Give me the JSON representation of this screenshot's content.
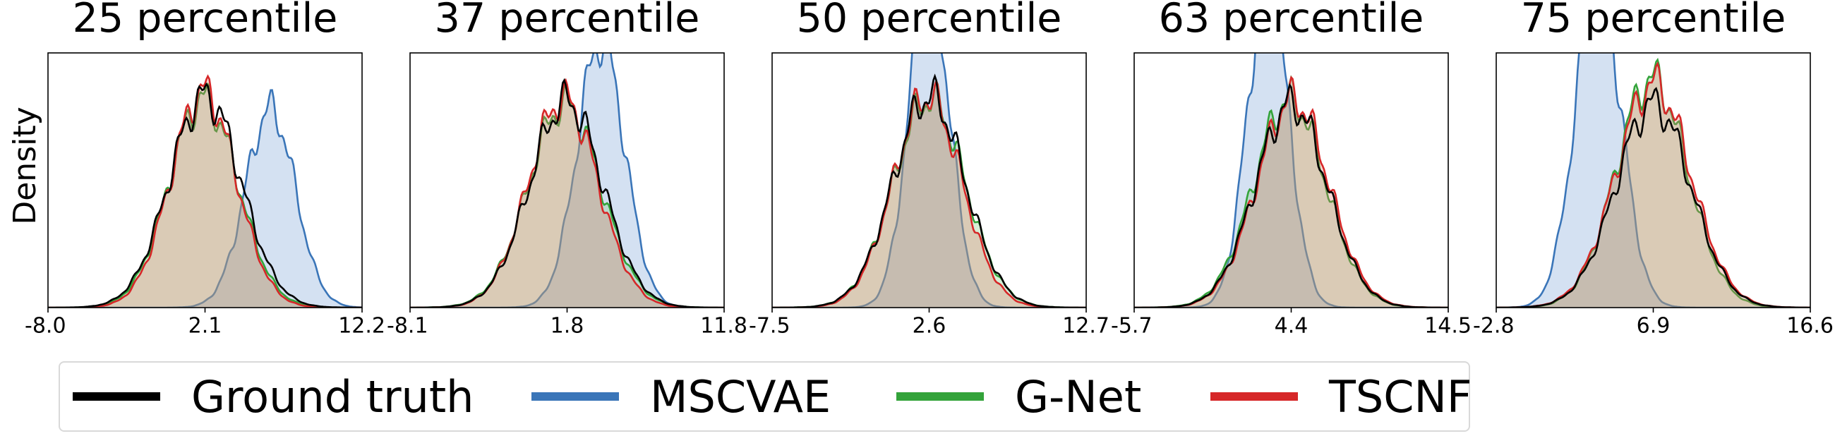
{
  "figure": {
    "ylabel": "Density"
  },
  "legend": [
    {
      "label": "Ground truth",
      "color": "#000000"
    },
    {
      "label": "MSCVAE",
      "color": "#3a75b8"
    },
    {
      "label": "G-Net",
      "color": "#33a33a"
    },
    {
      "label": "TSCNF",
      "color": "#d62728"
    }
  ],
  "chart_data": [
    {
      "type": "area",
      "title": "25 percentile",
      "ylabel": "Density",
      "xlim": [
        -8.0,
        12.2
      ],
      "xticks": [
        "-8.0",
        "2.1",
        "12.2"
      ],
      "series": [
        {
          "name": "Ground truth",
          "mean": 2.1,
          "sd": 2.3,
          "peak": 0.83
        },
        {
          "name": "MSCVAE",
          "mean": 6.3,
          "sd": 1.6,
          "peak": 0.78
        },
        {
          "name": "G-Net",
          "mean": 2.0,
          "sd": 2.2,
          "peak": 0.82
        },
        {
          "name": "TSCNF",
          "mean": 2.0,
          "sd": 2.1,
          "peak": 0.85
        }
      ]
    },
    {
      "type": "area",
      "title": "37 percentile",
      "ylabel": "Density",
      "xlim": [
        -8.1,
        11.8
      ],
      "xticks": [
        "-8.1",
        "1.8",
        "11.8"
      ],
      "series": [
        {
          "name": "Ground truth",
          "mean": 1.8,
          "sd": 2.3,
          "peak": 0.81
        },
        {
          "name": "MSCVAE",
          "mean": 4.0,
          "sd": 1.5,
          "peak": 1.05
        },
        {
          "name": "G-Net",
          "mean": 1.7,
          "sd": 2.3,
          "peak": 0.8
        },
        {
          "name": "TSCNF",
          "mean": 1.6,
          "sd": 2.2,
          "peak": 0.82
        }
      ]
    },
    {
      "type": "area",
      "title": "50 percentile",
      "ylabel": "Density",
      "xlim": [
        -7.5,
        12.7
      ],
      "xticks": [
        "-7.5",
        "2.6",
        "12.7"
      ],
      "series": [
        {
          "name": "Ground truth",
          "mean": 2.6,
          "sd": 2.3,
          "peak": 0.83
        },
        {
          "name": "MSCVAE",
          "mean": 2.6,
          "sd": 1.3,
          "peak": 1.3
        },
        {
          "name": "G-Net",
          "mean": 2.6,
          "sd": 2.3,
          "peak": 0.82
        },
        {
          "name": "TSCNF",
          "mean": 2.5,
          "sd": 2.2,
          "peak": 0.83
        }
      ]
    },
    {
      "type": "area",
      "title": "63 percentile",
      "ylabel": "Density",
      "xlim": [
        -5.7,
        14.5
      ],
      "xticks": [
        "-5.7",
        "4.4",
        "14.5"
      ],
      "series": [
        {
          "name": "Ground truth",
          "mean": 4.4,
          "sd": 2.3,
          "peak": 0.8
        },
        {
          "name": "MSCVAE",
          "mean": 2.9,
          "sd": 1.3,
          "peak": 1.3
        },
        {
          "name": "G-Net",
          "mean": 4.3,
          "sd": 2.3,
          "peak": 0.82
        },
        {
          "name": "TSCNF",
          "mean": 4.5,
          "sd": 2.3,
          "peak": 0.82
        }
      ]
    },
    {
      "type": "area",
      "title": "75 percentile",
      "ylabel": "Density",
      "xlim": [
        -2.8,
        16.6
      ],
      "xticks": [
        "-2.8",
        "6.9",
        "16.6"
      ],
      "series": [
        {
          "name": "Ground truth",
          "mean": 6.9,
          "sd": 2.3,
          "peak": 0.8
        },
        {
          "name": "MSCVAE",
          "mean": 3.5,
          "sd": 1.4,
          "peak": 1.3
        },
        {
          "name": "G-Net",
          "mean": 6.8,
          "sd": 2.2,
          "peak": 0.9
        },
        {
          "name": "TSCNF",
          "mean": 6.9,
          "sd": 2.3,
          "peak": 0.88
        }
      ]
    }
  ]
}
